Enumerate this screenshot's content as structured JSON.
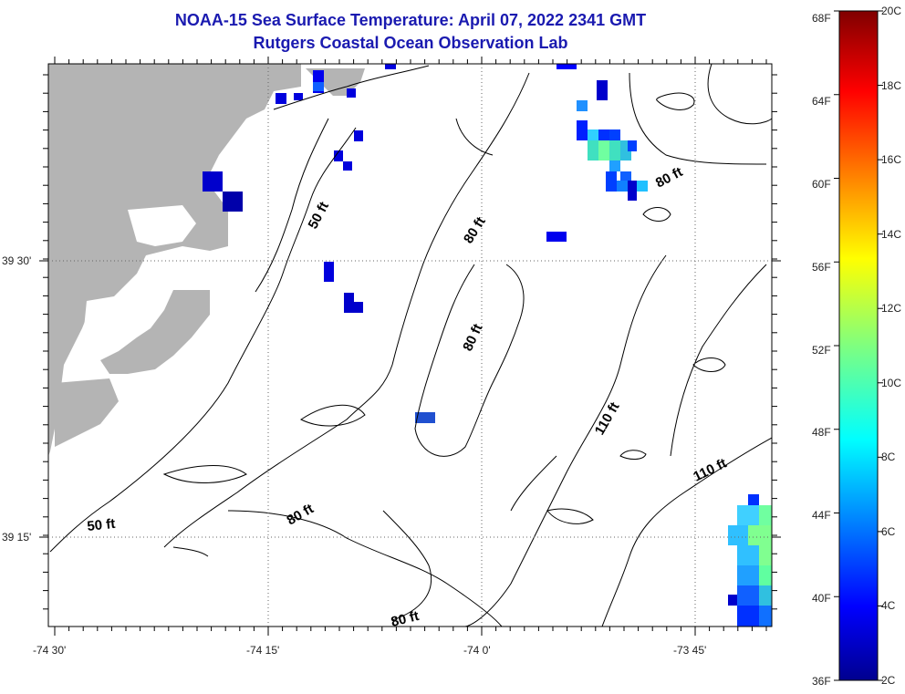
{
  "title": {
    "line1": "NOAA-15 Sea Surface Temperature:  April 07, 2022 2341 GMT",
    "line2": "Rutgers Coastal Ocean Observation Lab"
  },
  "axes": {
    "longitude_labels": [
      "-74 30'",
      "-74 15'",
      "-74 0'",
      "-73 45'"
    ],
    "latitude_labels": [
      "39 30'",
      "39 15'"
    ]
  },
  "contour_labels": [
    "50 ft",
    "50 ft",
    "80 ft",
    "80 ft",
    "80 ft",
    "80 ft",
    "80 ft",
    "110 ft",
    "110 ft"
  ],
  "colorbar": {
    "fahrenheit_labels": [
      "68F",
      "64F",
      "60F",
      "56F",
      "52F",
      "48F",
      "44F",
      "40F",
      "36F"
    ],
    "celsius_labels": [
      "20C",
      "18C",
      "16C",
      "14C",
      "12C",
      "10C",
      "8C",
      "6C",
      "4C",
      "2C"
    ]
  },
  "colors": {
    "title": "#1a1ab0",
    "land": "#b4b4b4",
    "contour": "#000000",
    "grid": "#666666"
  }
}
